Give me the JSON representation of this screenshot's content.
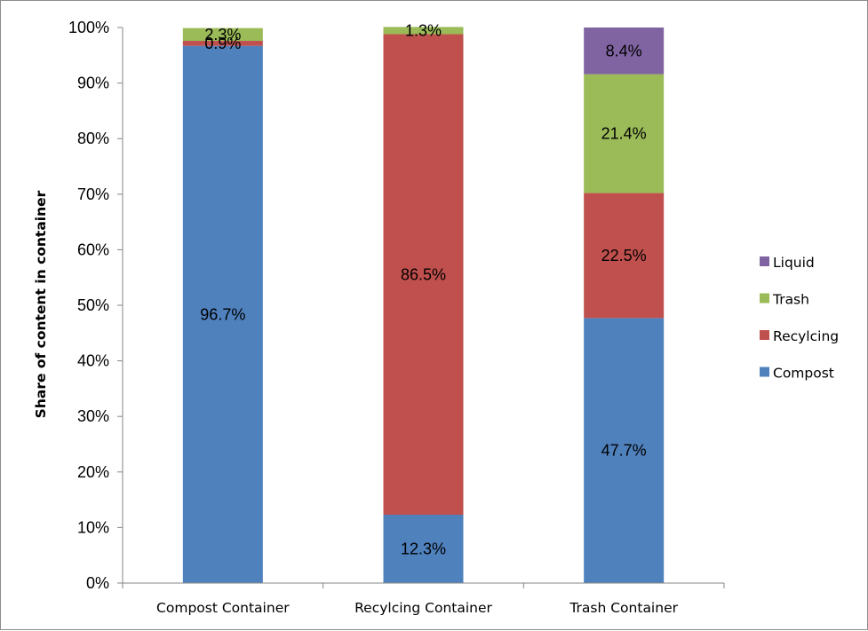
{
  "chart_data": {
    "type": "bar",
    "stacked": true,
    "categories": [
      "Compost Container",
      "Recylcing Container",
      "Trash Container"
    ],
    "series": [
      {
        "name": "Compost",
        "color": "#4f81bd",
        "values": [
          96.7,
          12.3,
          47.7
        ]
      },
      {
        "name": "Recylcing",
        "color": "#c0504d",
        "values": [
          0.9,
          86.5,
          22.5
        ]
      },
      {
        "name": "Trash",
        "color": "#9bbb59",
        "values": [
          2.3,
          1.3,
          21.4
        ]
      },
      {
        "name": "Liquid",
        "color": "#8064a2",
        "values": [
          0.0,
          0.0,
          8.4
        ]
      }
    ],
    "data_labels": [
      [
        "96.7%",
        "12.3%",
        "47.7%"
      ],
      [
        "0.9%",
        "86.5%",
        "22.5%"
      ],
      [
        "2.3%",
        "1.3%",
        "21.4%"
      ],
      [
        "",
        "",
        "8.4%"
      ]
    ],
    "ylabel": "Share of content in container",
    "xlabel": "",
    "ylim": [
      0,
      100
    ],
    "yticks": [
      "0%",
      "10%",
      "20%",
      "30%",
      "40%",
      "50%",
      "60%",
      "70%",
      "80%",
      "90%",
      "100%"
    ],
    "grid": false,
    "legend": {
      "position": "right",
      "order": [
        "Liquid",
        "Trash",
        "Recylcing",
        "Compost"
      ]
    }
  }
}
